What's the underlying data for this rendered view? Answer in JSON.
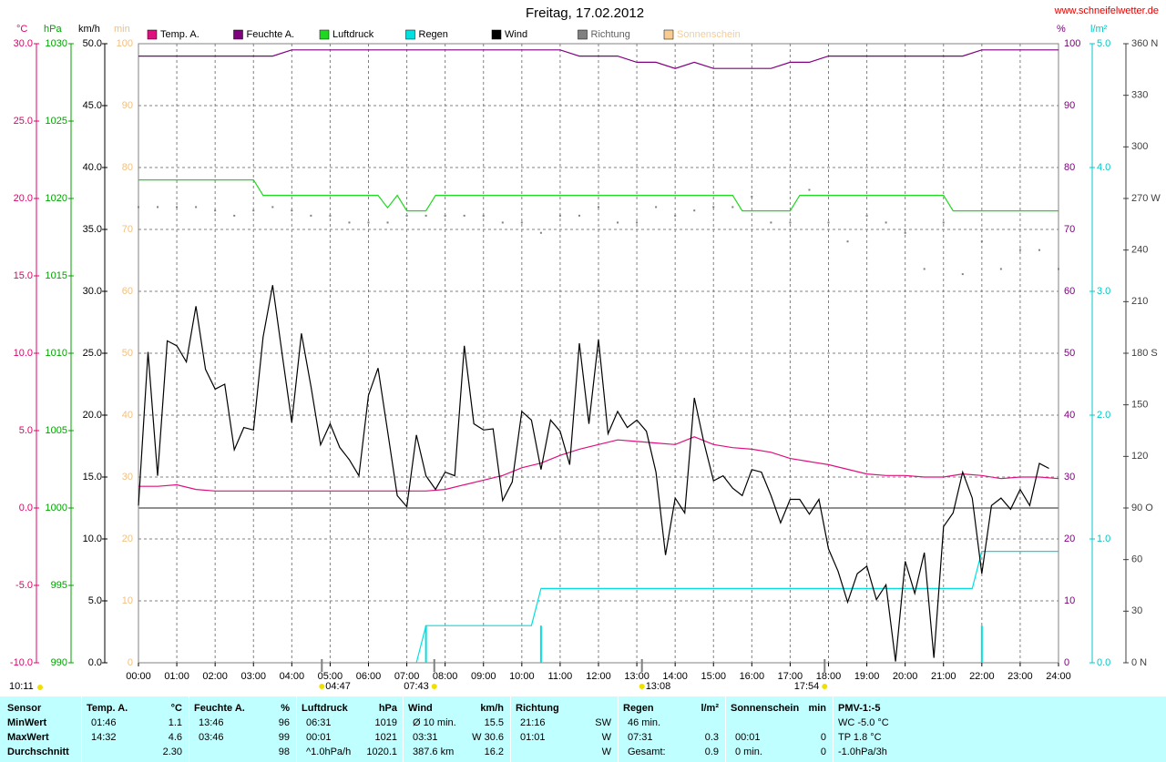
{
  "chart_data": {
    "type": "line",
    "title": "Freitag, 17.02.2012",
    "source": "www.schneifelwetter.de",
    "xlim": [
      0,
      24
    ],
    "xticks": [
      {
        "value": 0,
        "label": "00:00"
      },
      {
        "value": 1,
        "label": "01:00"
      },
      {
        "value": 2,
        "label": "02:00"
      },
      {
        "value": 3,
        "label": "03:00"
      },
      {
        "value": 4,
        "label": "04:00"
      },
      {
        "value": 5,
        "label": "05:00"
      },
      {
        "value": 6,
        "label": "06:00"
      },
      {
        "value": 7,
        "label": "07:00"
      },
      {
        "value": 8,
        "label": "08:00"
      },
      {
        "value": 9,
        "label": "09:00"
      },
      {
        "value": 10,
        "label": "10:00"
      },
      {
        "value": 11,
        "label": "11:00"
      },
      {
        "value": 12,
        "label": "12:00"
      },
      {
        "value": 13,
        "label": "13:00"
      },
      {
        "value": 14,
        "label": "14:00"
      },
      {
        "value": 15,
        "label": "15:00"
      },
      {
        "value": 16,
        "label": "16:00"
      },
      {
        "value": 17,
        "label": "17:00"
      },
      {
        "value": 18,
        "label": "18:00"
      },
      {
        "value": 19,
        "label": "19:00"
      },
      {
        "value": 20,
        "label": "20:00"
      },
      {
        "value": 21,
        "label": "21:00"
      },
      {
        "value": 22,
        "label": "22:00"
      },
      {
        "value": 23,
        "label": "23:00"
      },
      {
        "value": 24,
        "label": "24:00"
      }
    ],
    "xgrid": true,
    "axes": [
      {
        "unit": "°C",
        "color": "#e0006e",
        "lim": [
          -10,
          30
        ],
        "ticks": [
          {
            "value": -10,
            "label": "-10.0"
          },
          {
            "value": -5,
            "label": "-5.0"
          },
          {
            "value": 0,
            "label": "0.0"
          },
          {
            "value": 5,
            "label": "5.0"
          },
          {
            "value": 10,
            "label": "10.0"
          },
          {
            "value": 15,
            "label": "15.0"
          },
          {
            "value": 20,
            "label": "20.0"
          },
          {
            "value": 25,
            "label": "25.0"
          },
          {
            "value": 30,
            "label": "30.0"
          }
        ]
      },
      {
        "unit": "hPa",
        "color": "#00a000",
        "lim": [
          990,
          1030
        ],
        "ticks": [
          990,
          995,
          1000,
          1005,
          1010,
          1015,
          1020,
          1025,
          1030
        ]
      },
      {
        "unit": "km/h",
        "color": "#000000",
        "lim": [
          0,
          50
        ],
        "grid": true,
        "ticks": [
          {
            "value": 0,
            "label": "0.0"
          },
          {
            "value": 5,
            "label": "5.0"
          },
          {
            "value": 10,
            "label": "10.0"
          },
          {
            "value": 15,
            "label": "15.0"
          },
          {
            "value": 20,
            "label": "20.0"
          },
          {
            "value": 25,
            "label": "25.0"
          },
          {
            "value": 30,
            "label": "30.0"
          },
          {
            "value": 35,
            "label": "35.0"
          },
          {
            "value": 40,
            "label": "40.0"
          },
          {
            "value": 45,
            "label": "45.0"
          },
          {
            "value": 50,
            "label": "50.0"
          }
        ]
      },
      {
        "unit": "min",
        "color": "#f0c080",
        "lim": [
          0,
          100
        ],
        "ticks": [
          0,
          10,
          20,
          30,
          40,
          50,
          60,
          70,
          80,
          90,
          100
        ]
      },
      {
        "unit": "%",
        "color": "#800080",
        "lim": [
          0,
          100
        ],
        "ticks": [
          0,
          10,
          20,
          30,
          40,
          50,
          60,
          70,
          80,
          90,
          100
        ]
      },
      {
        "unit": "l/m²",
        "color": "#00c8c8",
        "lim": [
          0,
          5
        ],
        "ticks": [
          {
            "value": 0,
            "label": "0.0"
          },
          {
            "value": 1,
            "label": "1.0"
          },
          {
            "value": 2,
            "label": "2.0"
          },
          {
            "value": 3,
            "label": "3.0"
          },
          {
            "value": 4,
            "label": "4.0"
          },
          {
            "value": 5,
            "label": "5.0"
          }
        ]
      },
      {
        "color": "#404040",
        "lim": [
          0,
          360
        ],
        "ticks": [
          {
            "value": 0,
            "label": "0 N"
          },
          30,
          60,
          {
            "value": 90,
            "label": "90 O"
          },
          120,
          150,
          {
            "value": 180,
            "label": "180 S"
          },
          210,
          240,
          {
            "value": 270,
            "label": "270 W"
          },
          300,
          330,
          {
            "value": 360,
            "label": "360 N"
          }
        ]
      }
    ],
    "series": [
      {
        "name": "Temp. A.",
        "color": "#e0107e",
        "axis": 0,
        "x": [
          0,
          0.5,
          1,
          1.5,
          2,
          2.5,
          3,
          3.5,
          4,
          4.5,
          5,
          5.5,
          6,
          6.5,
          7,
          7.5,
          8,
          8.5,
          9,
          9.5,
          10,
          10.5,
          11,
          11.5,
          12,
          12.5,
          13,
          13.5,
          14,
          14.5,
          15,
          15.5,
          16,
          16.5,
          17,
          17.5,
          18,
          18.5,
          19,
          19.5,
          20,
          20.5,
          21,
          21.5,
          22,
          22.5,
          23,
          23.5,
          24
        ],
        "values": [
          1.4,
          1.4,
          1.5,
          1.2,
          1.1,
          1.1,
          1.1,
          1.1,
          1.1,
          1.1,
          1.1,
          1.1,
          1.1,
          1.1,
          1.1,
          1.1,
          1.2,
          1.5,
          1.8,
          2.1,
          2.6,
          2.9,
          3.4,
          3.8,
          4.1,
          4.4,
          4.3,
          4.2,
          4.1,
          4.6,
          4.1,
          3.9,
          3.8,
          3.6,
          3.2,
          3.0,
          2.8,
          2.5,
          2.2,
          2.1,
          2.1,
          2.0,
          2.0,
          2.2,
          2.1,
          1.9,
          2.0,
          2.0,
          1.9
        ]
      },
      {
        "name": "Feuchte A.",
        "color": "#800080",
        "axis": 4,
        "x": [
          0,
          0.5,
          1,
          1.5,
          2,
          2.5,
          3,
          3.5,
          4,
          4.5,
          5,
          5.5,
          6,
          6.5,
          7,
          7.5,
          8,
          8.5,
          9,
          9.5,
          10,
          10.5,
          11,
          11.5,
          12,
          12.5,
          13,
          13.5,
          14,
          14.5,
          15,
          15.5,
          16,
          16.5,
          17,
          17.5,
          18,
          18.5,
          19,
          19.5,
          20,
          20.5,
          21,
          21.5,
          22,
          22.5,
          23,
          23.5,
          24
        ],
        "values": [
          98,
          98,
          98,
          98,
          98,
          98,
          98,
          98,
          99,
          99,
          99,
          99,
          99,
          99,
          99,
          99,
          99,
          99,
          99,
          99,
          99,
          99,
          99,
          98,
          98,
          98,
          97,
          97,
          96,
          97,
          96,
          96,
          96,
          96,
          97,
          97,
          98,
          98,
          98,
          98,
          98,
          98,
          98,
          98,
          99,
          99,
          99,
          99,
          99
        ]
      },
      {
        "name": "Luftdruck",
        "color": "#20d820",
        "axis": 1,
        "x": [
          0,
          3,
          3.25,
          6.25,
          6.5,
          6.75,
          7,
          7.5,
          7.75,
          15.5,
          15.75,
          17,
          17.25,
          21,
          21.25,
          24
        ],
        "values": [
          1021.2,
          1021.2,
          1020.2,
          1020.2,
          1019.4,
          1020.2,
          1019.2,
          1019.2,
          1020.2,
          1020.2,
          1019.2,
          1019.2,
          1020.2,
          1020.2,
          1019.2,
          1019.2
        ]
      },
      {
        "name": "Regen",
        "color": "#00e0e0",
        "axis": 5,
        "x": [
          7.25,
          7.5,
          10.25,
          10.5,
          21.75,
          22,
          24
        ],
        "values": [
          0,
          0.3,
          0.3,
          0.6,
          0.6,
          0.9,
          0.9
        ]
      },
      {
        "name": "Wind",
        "color": "#000000",
        "axis": 2,
        "x": [
          0,
          0.25,
          0.5,
          0.75,
          1,
          1.25,
          1.5,
          1.75,
          2,
          2.25,
          2.5,
          2.75,
          3,
          3.25,
          3.5,
          3.75,
          4,
          4.25,
          4.5,
          4.75,
          5,
          5.25,
          5.5,
          5.75,
          6,
          6.25,
          6.5,
          6.75,
          7,
          7.25,
          7.5,
          7.75,
          8,
          8.25,
          8.5,
          8.75,
          9,
          9.25,
          9.5,
          9.75,
          10,
          10.25,
          10.5,
          10.75,
          11,
          11.25,
          11.5,
          11.75,
          12,
          12.25,
          12.5,
          12.75,
          13,
          13.25,
          13.5,
          13.75,
          14,
          14.25,
          14.5,
          14.75,
          15,
          15.25,
          15.5,
          15.75,
          16,
          16.25,
          16.5,
          16.75,
          17,
          17.25,
          17.5,
          17.75,
          18,
          18.25,
          18.5,
          18.75,
          19,
          19.25,
          19.5,
          19.75,
          20,
          20.25,
          20.5,
          20.75,
          21,
          21.25,
          21.5,
          21.75,
          22,
          22.25,
          22.5,
          22.75,
          23,
          23.25,
          23.5,
          23.75
        ],
        "values": [
          12.7,
          25.1,
          15.1,
          26.0,
          25.6,
          24.3,
          28.8,
          23.7,
          22.1,
          22.5,
          17.2,
          19.0,
          18.8,
          26.3,
          30.5,
          24.9,
          19.4,
          26.6,
          22.3,
          17.6,
          19.3,
          17.4,
          16.4,
          15.1,
          21.6,
          23.8,
          18.7,
          13.5,
          12.6,
          18.4,
          15.1,
          14.0,
          15.4,
          15.1,
          25.6,
          19.3,
          18.8,
          18.9,
          13.1,
          14.6,
          20.3,
          19.6,
          15.6,
          19.6,
          18.7,
          16.0,
          25.8,
          19.3,
          26.1,
          18.5,
          20.3,
          19.0,
          19.6,
          18.7,
          15.4,
          8.7,
          13.3,
          12.1,
          21.4,
          17.8,
          14.7,
          15.1,
          14.1,
          13.5,
          15.6,
          15.4,
          13.5,
          11.3,
          13.2,
          13.2,
          12.0,
          13.2,
          9.2,
          7.4,
          4.9,
          7.2,
          7.8,
          5.1,
          6.3,
          0.1,
          8.2,
          5.6,
          8.9,
          0.4,
          11.0,
          12.1,
          15.4,
          13.3,
          7.2,
          12.7,
          13.3,
          12.4,
          14.0,
          12.7,
          16.1,
          15.7
        ]
      },
      {
        "name": "Richtung",
        "color": "#808080",
        "axis": 6,
        "style": "dots",
        "x": [
          0,
          0.5,
          1,
          1.5,
          2,
          2.5,
          3,
          3.5,
          4,
          4.5,
          5,
          5.5,
          6,
          6.5,
          7,
          7.5,
          8,
          8.5,
          9,
          9.5,
          10,
          10.5,
          11,
          11.5,
          12,
          12.5,
          13,
          13.5,
          14,
          14.5,
          15,
          15.5,
          16,
          16.5,
          17,
          17.5,
          18,
          18.5,
          19,
          19.5,
          20,
          20.5,
          21,
          21.5,
          22,
          22.5,
          23,
          23.5,
          24
        ],
        "values": [
          265,
          265,
          265,
          265,
          263,
          260,
          263,
          265,
          263,
          260,
          260,
          256,
          256,
          256,
          260,
          260,
          260,
          260,
          260,
          256,
          256,
          250,
          260,
          260,
          265,
          256,
          256,
          265,
          260,
          263,
          265,
          265,
          271,
          256,
          256,
          275,
          256,
          245,
          260,
          256,
          250,
          229,
          256,
          226,
          245,
          229,
          240,
          240,
          229
        ]
      },
      {
        "name": "Sonnenschein",
        "color": "#f8cc90",
        "axis": 3,
        "x": [],
        "values": []
      }
    ],
    "rain_bars": {
      "axis": 5,
      "color": "#00e0e0",
      "x": [
        7.5,
        10.5,
        22
      ],
      "values": [
        0.3,
        0.3,
        0.3
      ]
    },
    "annotations": [
      "04:47",
      "07:43",
      "13:08",
      "17:54"
    ],
    "day_length": "10:11"
  },
  "table": {
    "corner": "Sensor",
    "row_labels": [
      "MinWert",
      "MaxWert",
      "Durchschnitt"
    ],
    "groups": [
      {
        "name": "Temp. A.",
        "unit": "°C",
        "rows": [
          [
            "01:46",
            "1.1"
          ],
          [
            "14:32",
            "4.6"
          ],
          [
            null,
            "2.30"
          ]
        ]
      },
      {
        "name": "Feuchte A.",
        "unit": "%",
        "rows": [
          [
            "13:46",
            "96"
          ],
          [
            "03:46",
            "99"
          ],
          [
            null,
            "98"
          ]
        ]
      },
      {
        "name": "Luftdruck",
        "unit": "hPa",
        "rows": [
          [
            "06:31",
            "1019"
          ],
          [
            "00:01",
            "1021"
          ],
          [
            "^1.0hPa/h",
            "1020.1"
          ]
        ]
      },
      {
        "name": "Wind",
        "unit": "km/h",
        "rows": [
          [
            "Ø 10 min.",
            "15.5"
          ],
          [
            "03:31",
            "W 30.6"
          ],
          [
            "387.6 km",
            "16.2"
          ]
        ]
      },
      {
        "name": "Richtung",
        "rows": [
          [
            "21:16",
            "SW"
          ],
          [
            "01:01",
            "W"
          ],
          [
            null,
            "W"
          ]
        ]
      },
      {
        "name": "Regen",
        "unit": "l/m²",
        "rows": [
          [
            "46 min.",
            null
          ],
          [
            "07:31",
            "0.3"
          ],
          [
            "Gesamt:",
            "0.9"
          ]
        ]
      },
      {
        "name": "Sonnenschein",
        "unit": "min",
        "rows": [
          [
            null,
            null
          ],
          [
            "00:01",
            "0"
          ],
          [
            "0 min.",
            "0"
          ]
        ]
      },
      {
        "name": "PMV-1:-5",
        "rows": [
          [
            "WC -5.0 °C"
          ],
          [
            "TP 1.8 °C"
          ],
          [
            "-1.0hPa/3h"
          ]
        ]
      }
    ]
  }
}
